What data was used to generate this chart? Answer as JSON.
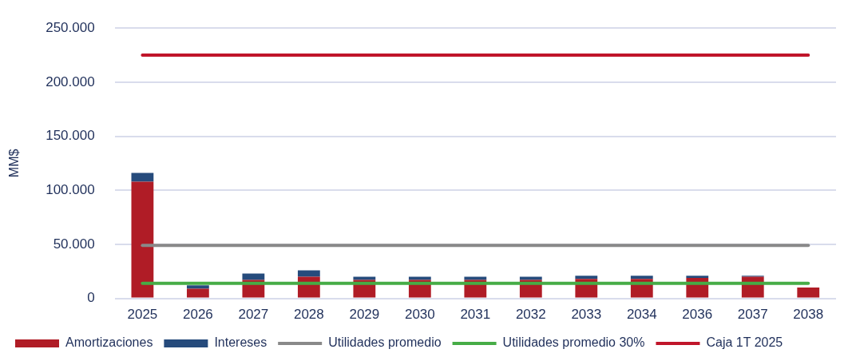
{
  "chart_data": {
    "type": "bar",
    "stacked": true,
    "ylabel": "MM$",
    "categories": [
      "2025",
      "2026",
      "2027",
      "2028",
      "2029",
      "2030",
      "2031",
      "2032",
      "2033",
      "2034",
      "2036",
      "2037",
      "2038"
    ],
    "series": [
      {
        "name": "Amortizaciones",
        "color": "#b01c26",
        "values": [
          108000,
          9000,
          17000,
          20000,
          17000,
          17000,
          17000,
          17000,
          18000,
          18000,
          19000,
          20000,
          10000
        ]
      },
      {
        "name": "Intereses",
        "color": "#264b7c",
        "values": [
          8000,
          3000,
          6000,
          6000,
          3000,
          3000,
          3000,
          3000,
          3000,
          3000,
          2000,
          1000,
          null
        ]
      },
      {
        "name": "Utilidades promedio",
        "type": "line",
        "color": "#898989",
        "values": [
          49000,
          49000,
          49000,
          49000,
          49000,
          49000,
          49000,
          49000,
          49000,
          49000,
          49000,
          49000,
          49000
        ]
      },
      {
        "name": "Utilidades promedio 30%",
        "type": "line",
        "color": "#46ac46",
        "values": [
          14000,
          14000,
          14000,
          14000,
          14000,
          14000,
          14000,
          14000,
          14000,
          14000,
          14000,
          14000,
          14000
        ]
      },
      {
        "name": "Caja 1T 2025",
        "type": "line",
        "color": "#c0152a",
        "values": [
          225000,
          225000,
          225000,
          225000,
          225000,
          225000,
          225000,
          225000,
          225000,
          225000,
          225000,
          225000,
          225000
        ]
      }
    ],
    "ylim": [
      0,
      250000
    ],
    "yticks": [
      {
        "value": 0,
        "label": "0"
      },
      {
        "value": 50000,
        "label": "50.000"
      },
      {
        "value": 100000,
        "label": "100.000"
      },
      {
        "value": 150000,
        "label": "150.000"
      },
      {
        "value": 200000,
        "label": "200.000"
      },
      {
        "value": 250000,
        "label": "250.000"
      }
    ],
    "grid": "y",
    "legend": "bottom",
    "marker": "none",
    "line_style": "solid"
  }
}
